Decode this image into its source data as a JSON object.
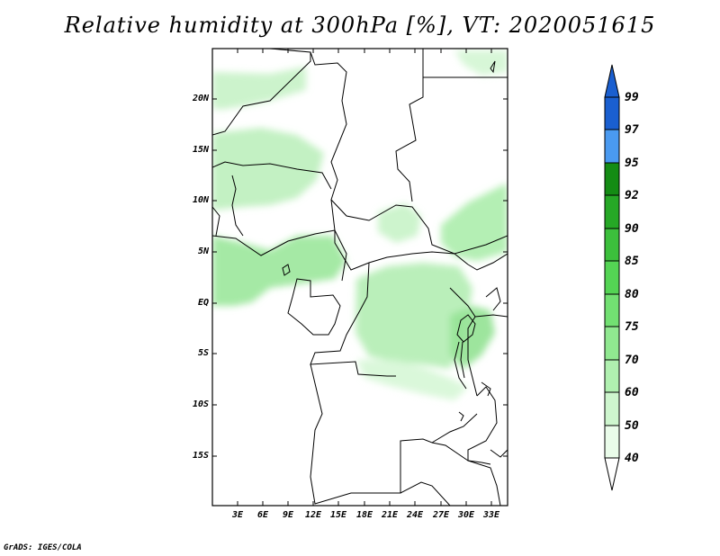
{
  "title": "Relative humidity at 300hPa [%], VT: 2020051615",
  "latitude_labels": [
    "20N",
    "15N",
    "10N",
    "5N",
    "EQ",
    "5S",
    "10S",
    "15S"
  ],
  "longitude_labels": [
    "3E",
    "6E",
    "9E",
    "12E",
    "15E",
    "18E",
    "21E",
    "24E",
    "27E",
    "30E",
    "33E"
  ],
  "colorbar": {
    "levels": [
      "99",
      "97",
      "95",
      "92",
      "90",
      "85",
      "80",
      "75",
      "70",
      "60",
      "50",
      "40"
    ],
    "colors": [
      "#1a5fd0",
      "#2a7ae0",
      "#4a9af0",
      "#148c14",
      "#26a826",
      "#3cc03c",
      "#54d454",
      "#72e072",
      "#90e890",
      "#b0f0b0",
      "#cef6ce",
      "#eafcea"
    ]
  },
  "footer": "GrADS: IGES/COLA"
}
